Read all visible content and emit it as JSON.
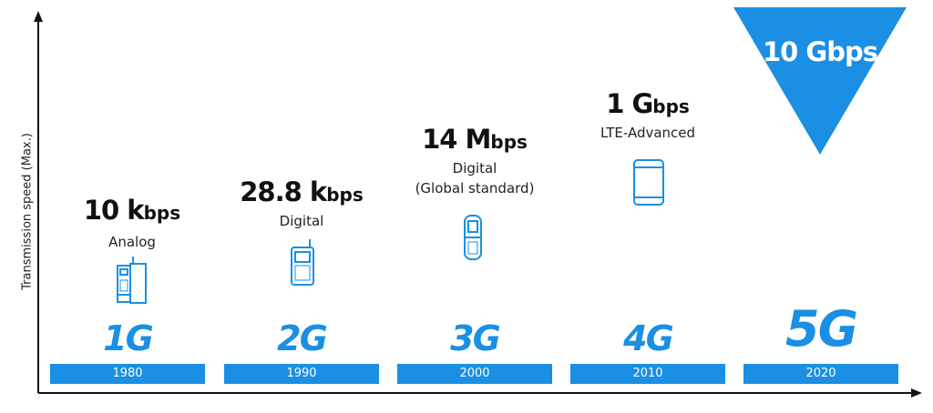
{
  "axis": {
    "y_label": "Transmission speed (Max.)"
  },
  "accent_color": "#1a8fe3",
  "generations": [
    {
      "gen": "1G",
      "year": "1980",
      "speed_value": "10 k",
      "speed_unit": "bps",
      "desc": [
        "Analog"
      ],
      "icon": "analog-phone-icon"
    },
    {
      "gen": "2G",
      "year": "1990",
      "speed_value": "28.8 k",
      "speed_unit": "bps",
      "desc": [
        "Digital"
      ],
      "icon": "feature-phone-icon"
    },
    {
      "gen": "3G",
      "year": "2000",
      "speed_value": "14 M",
      "speed_unit": "bps",
      "desc": [
        "Digital",
        "(Global standard)"
      ],
      "icon": "flip-phone-icon"
    },
    {
      "gen": "4G",
      "year": "2010",
      "speed_value": "1 G",
      "speed_unit": "bps",
      "desc": [
        "LTE-Advanced"
      ],
      "icon": "smartphone-icon"
    },
    {
      "gen": "5G",
      "year": "2020",
      "speed_value": "10 Gbps",
      "speed_unit": "",
      "desc": [],
      "icon": ""
    }
  ]
}
